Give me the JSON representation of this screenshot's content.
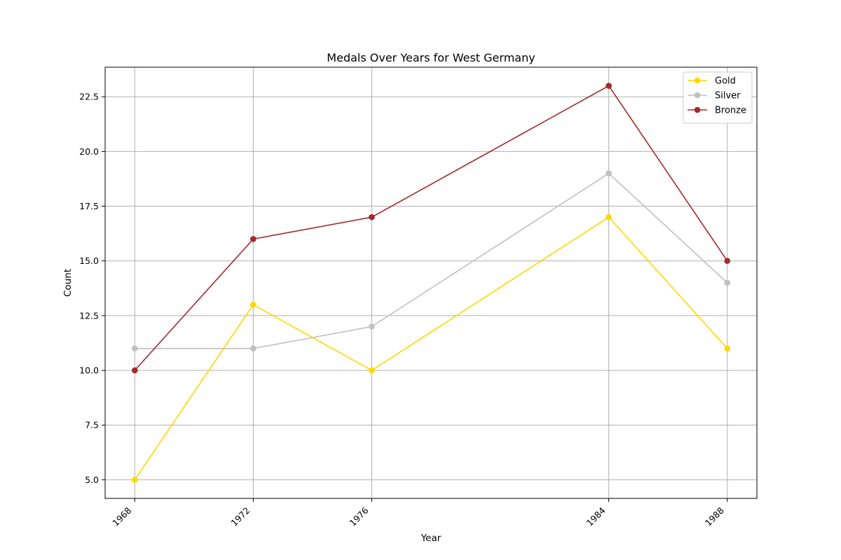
{
  "chart_data": {
    "type": "line",
    "title": "Medals Over Years for West Germany",
    "xlabel": "Year",
    "ylabel": "Count",
    "x": [
      1968,
      1972,
      1976,
      1984,
      1988
    ],
    "x_tick_labels": [
      "1968",
      "1972",
      "1976",
      "1984",
      "1988"
    ],
    "xlim": [
      1967,
      1989
    ],
    "ylim": [
      4.15,
      23.85
    ],
    "y_ticks": [
      5.0,
      7.5,
      10.0,
      12.5,
      15.0,
      17.5,
      20.0,
      22.5
    ],
    "y_tick_labels": [
      "5.0",
      "7.5",
      "10.0",
      "12.5",
      "15.0",
      "17.5",
      "20.0",
      "22.5"
    ],
    "grid": true,
    "legend_position": "top-right",
    "series": [
      {
        "name": "Gold",
        "color": "#ffd700",
        "values": [
          5,
          13,
          10,
          17,
          11
        ]
      },
      {
        "name": "Silver",
        "color": "#c0c0c0",
        "values": [
          11,
          11,
          12,
          19,
          14
        ]
      },
      {
        "name": "Bronze",
        "color": "#a52a2a",
        "values": [
          10,
          16,
          17,
          23,
          15
        ]
      }
    ]
  }
}
